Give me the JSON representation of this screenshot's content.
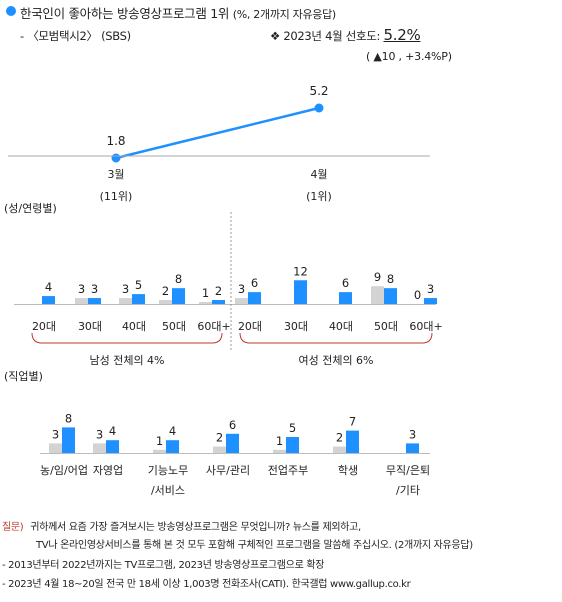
{
  "header": {
    "title": "한국인이 좋아하는 방송영상프로그램 1위",
    "title_unit": "(%, 2개까지 자유응답)",
    "program": "- 〈모범택시2〉 (SBS)",
    "pref_label": "❖  2023년 4월 선호도:",
    "pref_value": "5.2%",
    "change": "( ▲10 , +3.4%P)"
  },
  "colors": {
    "accent": "#1e90ff",
    "gray": "#d3d3d3",
    "question": "#c0392b"
  },
  "chart_data": [
    {
      "type": "line",
      "categories": [
        "3월",
        "4월"
      ],
      "ranks": [
        "(11위)",
        "(1위)"
      ],
      "series": [
        {
          "values": [
            1.8,
            5.2
          ]
        }
      ]
    },
    {
      "type": "bar",
      "group_label": "(성/연령별)",
      "categories": [
        "20대",
        "30대",
        "40대",
        "50대",
        "60대+",
        "20대",
        "30대",
        "40대",
        "50대",
        "60대+"
      ],
      "series": [
        {
          "name": "prev",
          "color": "#d3d3d3",
          "values": [
            null,
            3,
            3,
            2,
            1,
            3,
            null,
            null,
            9,
            0
          ]
        },
        {
          "name": "curr",
          "color": "#1e90ff",
          "values": [
            4,
            3,
            5,
            8,
            2,
            6,
            12,
            6,
            8,
            3
          ]
        }
      ],
      "labels": {
        "prev": [
          "",
          "3",
          "3",
          "2",
          "1",
          "3",
          "",
          "",
          "9",
          "0"
        ],
        "curr": [
          "4",
          "3",
          "5",
          "8",
          "2",
          "6",
          "12",
          "6",
          "8",
          "3"
        ]
      },
      "groups": [
        "남성 전체의 4%",
        "여성 전체의 6%"
      ]
    },
    {
      "type": "bar",
      "group_label": "(직업별)",
      "categories": [
        "농/임/어업",
        "자영업",
        "기능노무\n/서비스",
        "사무/관리",
        "전업주부",
        "학생",
        "무직/은퇴\n/기타"
      ],
      "series": [
        {
          "name": "prev",
          "color": "#d3d3d3",
          "values": [
            3,
            3,
            1,
            2,
            1,
            2,
            null
          ]
        },
        {
          "name": "curr",
          "color": "#1e90ff",
          "values": [
            8,
            4,
            4,
            6,
            5,
            7,
            3
          ]
        }
      ],
      "labels": {
        "prev": [
          "3",
          "3",
          "1",
          "2",
          "1",
          "2",
          ""
        ],
        "curr": [
          "8",
          "4",
          "4",
          "6",
          "5",
          "7",
          "3"
        ]
      }
    }
  ],
  "notes": {
    "question_label": "질문)",
    "question_line1": "귀하께서 요즘 가장 즐겨보시는 방송영상프로그램은 무엇입니까? 뉴스를 제외하고,",
    "question_line2": "TV나 온라인영상서비스를 통해 본 것 모두 포함해 구체적인 프로그램을 말씀해 주십시오. (2개까지 자유응답)",
    "line3": "- 2013년부터 2022년까지는 TV프로그램, 2023년 방송영상프로그램으로 확장",
    "line4": "- 2023년 4월 18~20일 전국 만 18세 이상 1,003명 전화조사(CATI). 한국갤럽 www.gallup.co.kr"
  }
}
